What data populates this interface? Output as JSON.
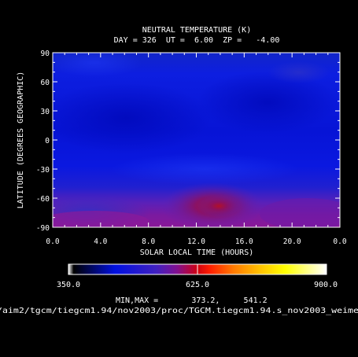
{
  "chart_data": {
    "type": "heatmap",
    "title": "NEUTRAL TEMPERATURE (K)",
    "subtitle": "DAY = 326  UT =  6.00  ZP =   -4.00",
    "xlabel": "SOLAR LOCAL TIME (HOURS)",
    "ylabel": "LATITUDE (DEGREES GEOGRAPHIC)",
    "x_ticks": [
      "0.0",
      "4.0",
      "8.0",
      "12.0",
      "16.0",
      "20.0",
      "0.0"
    ],
    "y_ticks": [
      "90",
      "60",
      "30",
      "0",
      "-30",
      "-60",
      "-90"
    ],
    "xlim": [
      0,
      24
    ],
    "ylim": [
      -90,
      90
    ],
    "colorbar": {
      "min_label": "350.0",
      "mid_label": "625.0",
      "max_label": "900.0",
      "range": [
        350,
        900
      ],
      "colors": [
        "#ffffff",
        "#000000",
        "#0010e0",
        "#5020c0",
        "#b00060",
        "#ff0000",
        "#ff7a00",
        "#ffe000",
        "#ffffa0",
        "#ffffff"
      ]
    },
    "minmax_text": "MIN,MAX =       373.2,     541.2",
    "source_path": "/aim2/tgcm/tiegcm1.94/nov2003/proc/TGCM.tiegcm1.94.s_nov2003_weime",
    "field_regions": [
      {
        "slt": 6,
        "lat": 30,
        "value": 380,
        "color": "#0a16d8"
      },
      {
        "slt": 14,
        "lat": -65,
        "value": 541,
        "color": "#a8102a"
      },
      {
        "slt": 3,
        "lat": -75,
        "value": 470,
        "color": "#4a1cb8"
      },
      {
        "slt": 21,
        "lat": 72,
        "value": 420,
        "color": "#2828c0"
      }
    ]
  }
}
